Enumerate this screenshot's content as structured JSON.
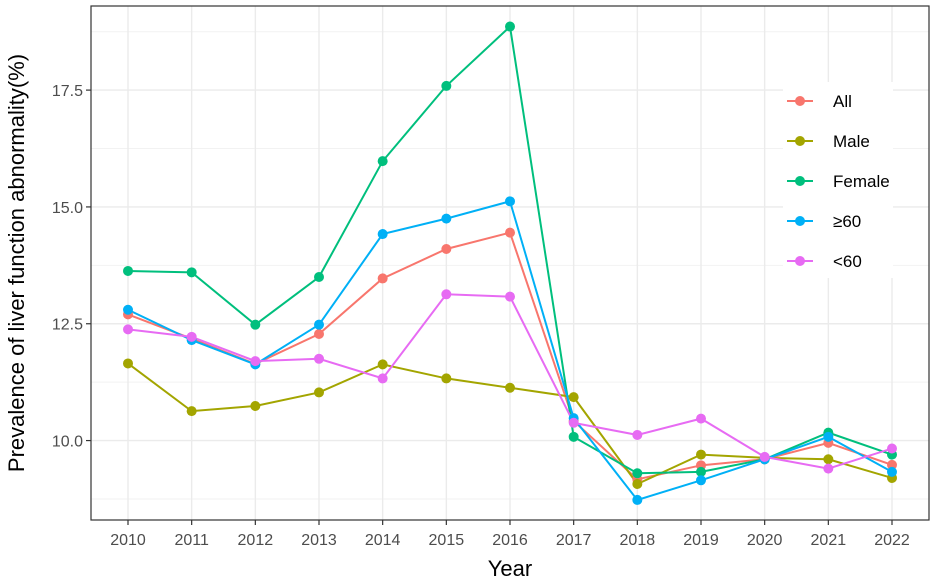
{
  "chart_data": {
    "type": "line",
    "title": "",
    "xlabel": "Year",
    "ylabel": "Prevalence of liver function abnormality(%)",
    "categories": [
      "2010",
      "2011",
      "2012",
      "2013",
      "2014",
      "2015",
      "2016",
      "2017",
      "2018",
      "2019",
      "2020",
      "2021",
      "2022"
    ],
    "y_ticks": [
      10.0,
      12.5,
      15.0,
      17.5
    ],
    "y_tick_labels": [
      "10.0",
      "12.5",
      "15.0",
      "17.5"
    ],
    "ylim": [
      8.3,
      19.3
    ],
    "grid": true,
    "legend_position": "right",
    "series": [
      {
        "name": "All",
        "color": "#F8766D",
        "values": [
          12.7,
          12.18,
          11.64,
          12.28,
          13.47,
          14.1,
          14.45,
          10.42,
          9.17,
          9.47,
          9.6,
          9.95,
          9.48
        ]
      },
      {
        "name": "Male",
        "color": "#A3A500",
        "values": [
          11.65,
          10.63,
          10.74,
          11.03,
          11.63,
          11.33,
          11.13,
          10.93,
          9.07,
          9.7,
          9.63,
          9.6,
          9.2
        ]
      },
      {
        "name": "Female",
        "color": "#00BF7D",
        "values": [
          13.63,
          13.6,
          12.48,
          13.5,
          15.98,
          17.59,
          18.86,
          10.08,
          9.3,
          9.33,
          9.6,
          10.17,
          9.7
        ]
      },
      {
        "name": "≥60",
        "color": "#00B0F6",
        "values": [
          12.8,
          12.15,
          11.63,
          12.48,
          14.42,
          14.75,
          15.12,
          10.48,
          8.73,
          9.15,
          9.6,
          10.08,
          9.33
        ]
      },
      {
        "name": "<60",
        "color": "#E76BF3",
        "values": [
          12.38,
          12.22,
          11.7,
          11.75,
          11.33,
          13.13,
          13.08,
          10.38,
          10.12,
          10.47,
          9.65,
          9.4,
          9.83
        ]
      }
    ]
  }
}
